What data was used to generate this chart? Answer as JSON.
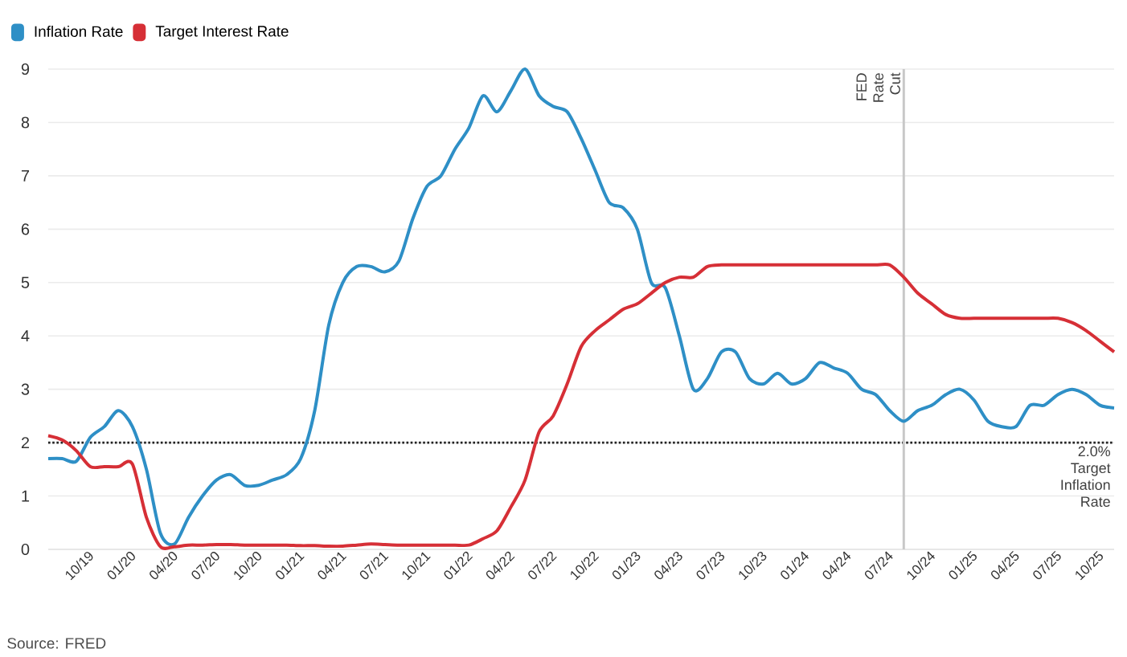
{
  "chart_data": {
    "type": "line",
    "x": [
      "2019-08",
      "2019-09",
      "2019-10",
      "2019-11",
      "2019-12",
      "2020-01",
      "2020-02",
      "2020-03",
      "2020-04",
      "2020-05",
      "2020-06",
      "2020-07",
      "2020-08",
      "2020-09",
      "2020-10",
      "2020-11",
      "2020-12",
      "2021-01",
      "2021-02",
      "2021-03",
      "2021-04",
      "2021-05",
      "2021-06",
      "2021-07",
      "2021-08",
      "2021-09",
      "2021-10",
      "2021-11",
      "2021-12",
      "2022-01",
      "2022-02",
      "2022-03",
      "2022-04",
      "2022-05",
      "2022-06",
      "2022-07",
      "2022-08",
      "2022-09",
      "2022-10",
      "2022-11",
      "2022-12",
      "2023-01",
      "2023-02",
      "2023-03",
      "2023-04",
      "2023-05",
      "2023-06",
      "2023-07",
      "2023-08",
      "2023-09",
      "2023-10",
      "2023-11",
      "2023-12",
      "2024-01",
      "2024-02",
      "2024-03",
      "2024-04",
      "2024-05",
      "2024-06",
      "2024-07",
      "2024-08",
      "2024-09",
      "2024-10",
      "2024-11",
      "2024-12",
      "2025-01",
      "2025-02",
      "2025-03",
      "2025-04",
      "2025-05",
      "2025-06",
      "2025-07",
      "2025-08",
      "2025-09",
      "2025-10",
      "2025-11",
      "2025-12"
    ],
    "series": [
      {
        "name": "Inflation Rate",
        "color": "#2e8fc6",
        "values": [
          1.7,
          1.7,
          1.65,
          2.1,
          2.3,
          2.6,
          2.3,
          1.5,
          0.3,
          0.1,
          0.6,
          1.0,
          1.3,
          1.4,
          1.2,
          1.2,
          1.3,
          1.4,
          1.7,
          2.6,
          4.2,
          5.0,
          5.3,
          5.3,
          5.2,
          5.4,
          6.2,
          6.8,
          7.0,
          7.5,
          7.9,
          8.5,
          8.2,
          8.6,
          9.0,
          8.5,
          8.3,
          8.2,
          7.7,
          7.1,
          6.5,
          6.4,
          6.0,
          5.0,
          4.9,
          4.0,
          3.0,
          3.2,
          3.7,
          3.7,
          3.2,
          3.1,
          3.3,
          3.1,
          3.2,
          3.5,
          3.4,
          3.3,
          3.0,
          2.9,
          2.6,
          2.4,
          2.6,
          2.7,
          2.9,
          3.0,
          2.8,
          2.4,
          2.3,
          2.3,
          2.7,
          2.7,
          2.9,
          3.0,
          2.9,
          2.7,
          2.65
        ]
      },
      {
        "name": "Target Interest Rate",
        "color": "#d62f36",
        "values": [
          2.13,
          2.05,
          1.85,
          1.55,
          1.55,
          1.55,
          1.6,
          0.6,
          0.05,
          0.05,
          0.08,
          0.08,
          0.09,
          0.09,
          0.08,
          0.08,
          0.08,
          0.08,
          0.07,
          0.07,
          0.06,
          0.06,
          0.08,
          0.1,
          0.09,
          0.08,
          0.08,
          0.08,
          0.08,
          0.08,
          0.08,
          0.2,
          0.35,
          0.8,
          1.3,
          2.2,
          2.5,
          3.1,
          3.8,
          4.1,
          4.3,
          4.5,
          4.6,
          4.8,
          5.0,
          5.1,
          5.1,
          5.3,
          5.33,
          5.33,
          5.33,
          5.33,
          5.33,
          5.33,
          5.33,
          5.33,
          5.33,
          5.33,
          5.33,
          5.33,
          5.33,
          5.1,
          4.8,
          4.6,
          4.4,
          4.33,
          4.33,
          4.33,
          4.33,
          4.33,
          4.33,
          4.33,
          4.33,
          4.25,
          4.1,
          3.9,
          3.7
        ]
      }
    ],
    "xlim": [
      "2019-08",
      "2025-12"
    ],
    "xticks": [
      {
        "value": "2019-10",
        "label": "10/19"
      },
      {
        "value": "2020-01",
        "label": "01/20"
      },
      {
        "value": "2020-04",
        "label": "04/20"
      },
      {
        "value": "2020-07",
        "label": "07/20"
      },
      {
        "value": "2020-10",
        "label": "10/20"
      },
      {
        "value": "2021-01",
        "label": "01/21"
      },
      {
        "value": "2021-04",
        "label": "04/21"
      },
      {
        "value": "2021-07",
        "label": "07/21"
      },
      {
        "value": "2021-10",
        "label": "10/21"
      },
      {
        "value": "2022-01",
        "label": "01/22"
      },
      {
        "value": "2022-04",
        "label": "04/22"
      },
      {
        "value": "2022-07",
        "label": "07/22"
      },
      {
        "value": "2022-10",
        "label": "10/22"
      },
      {
        "value": "2023-01",
        "label": "01/23"
      },
      {
        "value": "2023-04",
        "label": "04/23"
      },
      {
        "value": "2023-07",
        "label": "07/23"
      },
      {
        "value": "2023-10",
        "label": "10/23"
      },
      {
        "value": "2024-01",
        "label": "01/24"
      },
      {
        "value": "2024-04",
        "label": "04/24"
      },
      {
        "value": "2024-07",
        "label": "07/24"
      },
      {
        "value": "2024-10",
        "label": "10/24"
      },
      {
        "value": "2025-01",
        "label": "01/25"
      },
      {
        "value": "2025-04",
        "label": "04/25"
      },
      {
        "value": "2025-07",
        "label": "07/25"
      },
      {
        "value": "2025-10",
        "label": "10/25"
      }
    ],
    "ylim": [
      0,
      9
    ],
    "yticks": [
      0,
      1,
      2,
      3,
      4,
      5,
      6,
      7,
      8,
      9
    ],
    "grid": "y",
    "legend": "top left",
    "ref_lines": [
      {
        "axis": "y",
        "value": 2,
        "label": "2.0% Target Inflation Rate",
        "color": "#222222",
        "line_style": "dotted"
      },
      {
        "axis": "x",
        "value": "2024-09",
        "label": "FED Rate Cut",
        "color": "#c8c8c8",
        "line_style": "solid"
      }
    ],
    "annotations": [
      "Source: FRED"
    ]
  }
}
